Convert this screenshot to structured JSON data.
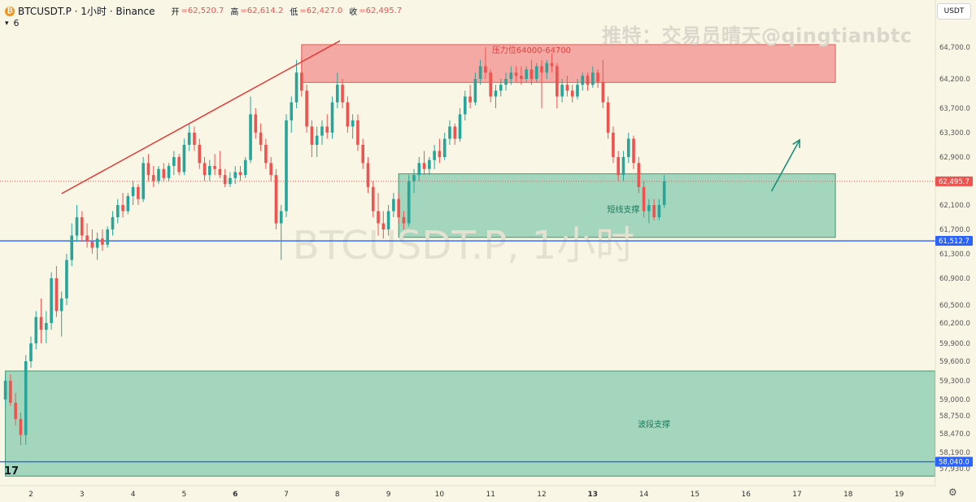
{
  "header": {
    "symbol_title": "BTCUSDT.P · 1小时 · Binance",
    "ohlc": [
      {
        "label": "开",
        "value": "=62,520.7"
      },
      {
        "label": "高",
        "value": "=62,614.2"
      },
      {
        "label": "低",
        "value": "=62,427.0"
      },
      {
        "label": "收",
        "value": "=62,495.7"
      }
    ],
    "indicator_count": "6",
    "currency": "USDT",
    "watermark_text": "推特：交易员晴天@qingtianbtc"
  },
  "colors": {
    "background": "#faf6e6",
    "candle_up": "#26a69a",
    "candle_down": "#ef5350",
    "resistance_zone": "#f4a9a5",
    "support_zone": "#a3d6bd",
    "hline": "#2962ff",
    "trendline": "#e53935",
    "arrow": "#1b8f7a"
  },
  "chart_data": {
    "type": "candlestick",
    "symbol_watermark": "BTCUSDT.P, 1小时",
    "x_ticks": [
      "2",
      "3",
      "4",
      "5",
      "6",
      "7",
      "8",
      "9",
      "10",
      "11",
      "12",
      "13",
      "14",
      "15",
      "16",
      "17",
      "18",
      "19"
    ],
    "x_tick_days": [
      2,
      3,
      4,
      5,
      6,
      7,
      8,
      9,
      10,
      11,
      12,
      13,
      14,
      15,
      16,
      17,
      18,
      19
    ],
    "bold_ticks": [
      "6",
      "13"
    ],
    "y_ticks": [
      "64,700.0",
      "64,200.0",
      "63,700.0",
      "63,300.0",
      "62,900.0",
      "62,100.0",
      "61,700.0",
      "61,300.0",
      "60,900.0",
      "60,500.0",
      "60,200.0",
      "59,900.0",
      "59,600.0",
      "59,300.0",
      "59,000.0",
      "58,750.0",
      "58,470.0",
      "58,190.0",
      "57,930.0"
    ],
    "y_values": [
      64700,
      64200,
      63700,
      63300,
      62900,
      62100,
      61700,
      61300,
      60900,
      60500,
      60200,
      59900,
      59600,
      59300,
      59000,
      58750,
      58470,
      58190,
      57930
    ],
    "price_labels": [
      {
        "text": "62,495.7",
        "value": 62495.7,
        "color": "#ef5350",
        "line": "dotted"
      },
      {
        "text": "61,512.7",
        "value": 61512.7,
        "color": "#2962ff",
        "line": "solid"
      },
      {
        "text": "58,040.0",
        "value": 58040,
        "color": "#2962ff",
        "line": "solid"
      }
    ],
    "zones": [
      {
        "label": "压力位64000-64700",
        "low": 64140,
        "high": 64740,
        "start_day": 7.3,
        "end_day": 17.75,
        "kind": "resistance"
      },
      {
        "label": "短线支撑",
        "low": 61570,
        "high": 62620,
        "start_day": 9.2,
        "end_day": 17.75,
        "kind": "support"
      },
      {
        "label": "波段支撑",
        "low": 57810,
        "high": 59450,
        "start_day": 1.5,
        "end_day": 19.7,
        "kind": "support"
      }
    ],
    "trendline": {
      "start": [
        2.6,
        62290
      ],
      "end": [
        8.05,
        64800
      ]
    },
    "arrow": {
      "start": [
        16.5,
        62330
      ],
      "end": [
        17.05,
        63180
      ]
    },
    "candles": [
      [
        1.5,
        59000,
        59350,
        58900,
        59300
      ],
      [
        1.6,
        59300,
        59400,
        58900,
        58950
      ],
      [
        1.7,
        58950,
        59100,
        58600,
        58700
      ],
      [
        1.8,
        58700,
        58800,
        58300,
        58450
      ],
      [
        1.9,
        58450,
        59700,
        58300,
        59600
      ],
      [
        2.0,
        59600,
        60000,
        59500,
        59900
      ],
      [
        2.1,
        59900,
        60400,
        59800,
        60300
      ],
      [
        2.2,
        60300,
        60600,
        59900,
        60100
      ],
      [
        2.3,
        60100,
        60400,
        59900,
        60200
      ],
      [
        2.4,
        60200,
        61000,
        60100,
        60900
      ],
      [
        2.5,
        60900,
        61100,
        60300,
        60400
      ],
      [
        2.6,
        60400,
        60700,
        60000,
        60600
      ],
      [
        2.7,
        60600,
        61300,
        60500,
        61200
      ],
      [
        2.8,
        61200,
        61800,
        61100,
        61600
      ],
      [
        2.9,
        61600,
        62100,
        61500,
        61900
      ],
      [
        3.0,
        61900,
        62000,
        61500,
        61600
      ],
      [
        3.1,
        61600,
        61800,
        61400,
        61500
      ],
      [
        3.2,
        61500,
        61700,
        61300,
        61400
      ],
      [
        3.3,
        61400,
        61650,
        61200,
        61550
      ],
      [
        3.4,
        61550,
        61700,
        61350,
        61450
      ],
      [
        3.5,
        61450,
        61750,
        61400,
        61700
      ],
      [
        3.6,
        61700,
        62000,
        61600,
        61900
      ],
      [
        3.7,
        61900,
        62200,
        61800,
        62100
      ],
      [
        3.8,
        62100,
        62300,
        61900,
        62000
      ],
      [
        3.9,
        62000,
        62300,
        61950,
        62250
      ],
      [
        4.0,
        62250,
        62500,
        62100,
        62400
      ],
      [
        4.1,
        62400,
        62450,
        62100,
        62200
      ],
      [
        4.2,
        62200,
        62900,
        62150,
        62800
      ],
      [
        4.3,
        62800,
        62950,
        62500,
        62600
      ],
      [
        4.4,
        62600,
        62750,
        62400,
        62500
      ],
      [
        4.5,
        62500,
        62750,
        62450,
        62700
      ],
      [
        4.6,
        62700,
        62800,
        62500,
        62550
      ],
      [
        4.7,
        62550,
        62800,
        62500,
        62750
      ],
      [
        4.8,
        62750,
        63000,
        62600,
        62900
      ],
      [
        4.9,
        62900,
        62950,
        62600,
        62650
      ],
      [
        5.0,
        62650,
        63200,
        62600,
        63100
      ],
      [
        5.1,
        63100,
        63450,
        63000,
        63300
      ],
      [
        5.2,
        63300,
        63400,
        63000,
        63100
      ],
      [
        5.3,
        63100,
        63200,
        62700,
        62800
      ],
      [
        5.4,
        62800,
        62900,
        62500,
        62600
      ],
      [
        5.5,
        62600,
        62850,
        62500,
        62750
      ],
      [
        5.6,
        62750,
        62950,
        62600,
        62700
      ],
      [
        5.7,
        62700,
        63000,
        62550,
        62600
      ],
      [
        5.8,
        62600,
        62700,
        62400,
        62450
      ],
      [
        5.9,
        62450,
        62650,
        62400,
        62550
      ],
      [
        6.0,
        62550,
        62750,
        62450,
        62650
      ],
      [
        6.1,
        62650,
        62750,
        62500,
        62600
      ],
      [
        6.2,
        62600,
        62900,
        62550,
        62850
      ],
      [
        6.3,
        62850,
        63900,
        62800,
        63600
      ],
      [
        6.4,
        63600,
        63700,
        63200,
        63300
      ],
      [
        6.5,
        63300,
        63450,
        63000,
        63100
      ],
      [
        6.6,
        63100,
        63200,
        62700,
        62800
      ],
      [
        6.7,
        62800,
        62900,
        62500,
        62600
      ],
      [
        6.8,
        62600,
        62700,
        61700,
        61800
      ],
      [
        6.9,
        61800,
        62100,
        61200,
        62000
      ],
      [
        7.0,
        62000,
        63600,
        61900,
        63500
      ],
      [
        7.1,
        63500,
        63900,
        63300,
        63800
      ],
      [
        7.2,
        63800,
        64500,
        63700,
        64300
      ],
      [
        7.3,
        64300,
        64550,
        63900,
        64000
      ],
      [
        7.4,
        64000,
        64100,
        63300,
        63400
      ],
      [
        7.5,
        63400,
        63500,
        62900,
        63100
      ],
      [
        7.6,
        63100,
        63400,
        62900,
        63250
      ],
      [
        7.7,
        63250,
        63500,
        63100,
        63400
      ],
      [
        7.8,
        63400,
        63600,
        63200,
        63300
      ],
      [
        7.9,
        63300,
        63900,
        63200,
        63800
      ],
      [
        8.0,
        63800,
        64300,
        63700,
        64100
      ],
      [
        8.1,
        64100,
        64200,
        63700,
        63800
      ],
      [
        8.2,
        63800,
        63900,
        63300,
        63400
      ],
      [
        8.3,
        63400,
        63600,
        63200,
        63500
      ],
      [
        8.4,
        63500,
        63600,
        63000,
        63100
      ],
      [
        8.5,
        63100,
        63200,
        62700,
        62800
      ],
      [
        8.6,
        62800,
        62900,
        62300,
        62400
      ],
      [
        8.7,
        62400,
        62500,
        61900,
        62000
      ],
      [
        8.8,
        62000,
        62300,
        61600,
        61800
      ],
      [
        8.9,
        61800,
        62000,
        61550,
        61700
      ],
      [
        9.0,
        61700,
        62100,
        61600,
        62000
      ],
      [
        9.1,
        62000,
        62300,
        61900,
        62200
      ],
      [
        9.2,
        62200,
        62300,
        61800,
        61900
      ],
      [
        9.3,
        61900,
        62000,
        61700,
        61800
      ],
      [
        9.4,
        61800,
        62600,
        61750,
        62500
      ],
      [
        9.5,
        62500,
        62700,
        62300,
        62600
      ],
      [
        9.6,
        62600,
        62900,
        62500,
        62800
      ],
      [
        9.7,
        62800,
        63000,
        62600,
        62700
      ],
      [
        9.8,
        62700,
        62900,
        62600,
        62850
      ],
      [
        9.9,
        62850,
        63100,
        62700,
        63000
      ],
      [
        10.0,
        63000,
        63200,
        62800,
        62900
      ],
      [
        10.1,
        62900,
        63300,
        62850,
        63200
      ],
      [
        10.2,
        63200,
        63500,
        63100,
        63400
      ],
      [
        10.3,
        63400,
        63450,
        63100,
        63200
      ],
      [
        10.4,
        63200,
        63700,
        63150,
        63600
      ],
      [
        10.5,
        63600,
        64000,
        63500,
        63900
      ],
      [
        10.6,
        63900,
        64100,
        63700,
        63800
      ],
      [
        10.7,
        63800,
        64300,
        63750,
        64200
      ],
      [
        10.8,
        64200,
        64500,
        64100,
        64400
      ],
      [
        10.9,
        64400,
        64700,
        64200,
        64300
      ],
      [
        11.0,
        64300,
        64350,
        63800,
        63900
      ],
      [
        11.1,
        63900,
        64100,
        63700,
        64000
      ],
      [
        11.2,
        64000,
        64200,
        63900,
        64100
      ],
      [
        11.3,
        64100,
        64300,
        64000,
        64200
      ],
      [
        11.4,
        64200,
        64400,
        64100,
        64300
      ],
      [
        11.5,
        64300,
        64400,
        64150,
        64250
      ],
      [
        11.6,
        64250,
        64400,
        64100,
        64200
      ],
      [
        11.7,
        64200,
        64400,
        64150,
        64350
      ],
      [
        11.8,
        64350,
        64500,
        64100,
        64200
      ],
      [
        11.9,
        64200,
        64450,
        64150,
        64400
      ],
      [
        12.0,
        64400,
        64500,
        63700,
        64300
      ],
      [
        12.1,
        64300,
        64500,
        64200,
        64450
      ],
      [
        12.2,
        64450,
        64600,
        64300,
        64400
      ],
      [
        12.3,
        64400,
        64450,
        63700,
        63900
      ],
      [
        12.4,
        63900,
        64200,
        63800,
        64100
      ],
      [
        12.5,
        64100,
        64250,
        63900,
        64000
      ],
      [
        12.6,
        64000,
        64100,
        63800,
        63900
      ],
      [
        12.7,
        63900,
        64200,
        63850,
        64100
      ],
      [
        12.8,
        64100,
        64300,
        64000,
        64250
      ],
      [
        12.9,
        64250,
        64300,
        64000,
        64100
      ],
      [
        13.0,
        64100,
        64400,
        64050,
        64300
      ],
      [
        13.1,
        64300,
        64350,
        64050,
        64150
      ],
      [
        13.2,
        64150,
        64500,
        63700,
        63800
      ],
      [
        13.3,
        63800,
        63900,
        63200,
        63300
      ],
      [
        13.4,
        63300,
        63400,
        62800,
        62900
      ],
      [
        13.5,
        62900,
        63000,
        62500,
        62600
      ],
      [
        13.6,
        62600,
        63000,
        62500,
        62900
      ],
      [
        13.7,
        62900,
        63300,
        62800,
        63200
      ],
      [
        13.8,
        63200,
        63250,
        62700,
        62800
      ],
      [
        13.9,
        62800,
        62900,
        62300,
        62400
      ],
      [
        14.0,
        62400,
        62500,
        61900,
        62000
      ],
      [
        14.1,
        62000,
        62200,
        61800,
        62100
      ],
      [
        14.2,
        62100,
        62200,
        61850,
        61900
      ],
      [
        14.3,
        61900,
        62200,
        61850,
        62100
      ],
      [
        14.4,
        62100,
        62600,
        62050,
        62495.7
      ]
    ]
  }
}
